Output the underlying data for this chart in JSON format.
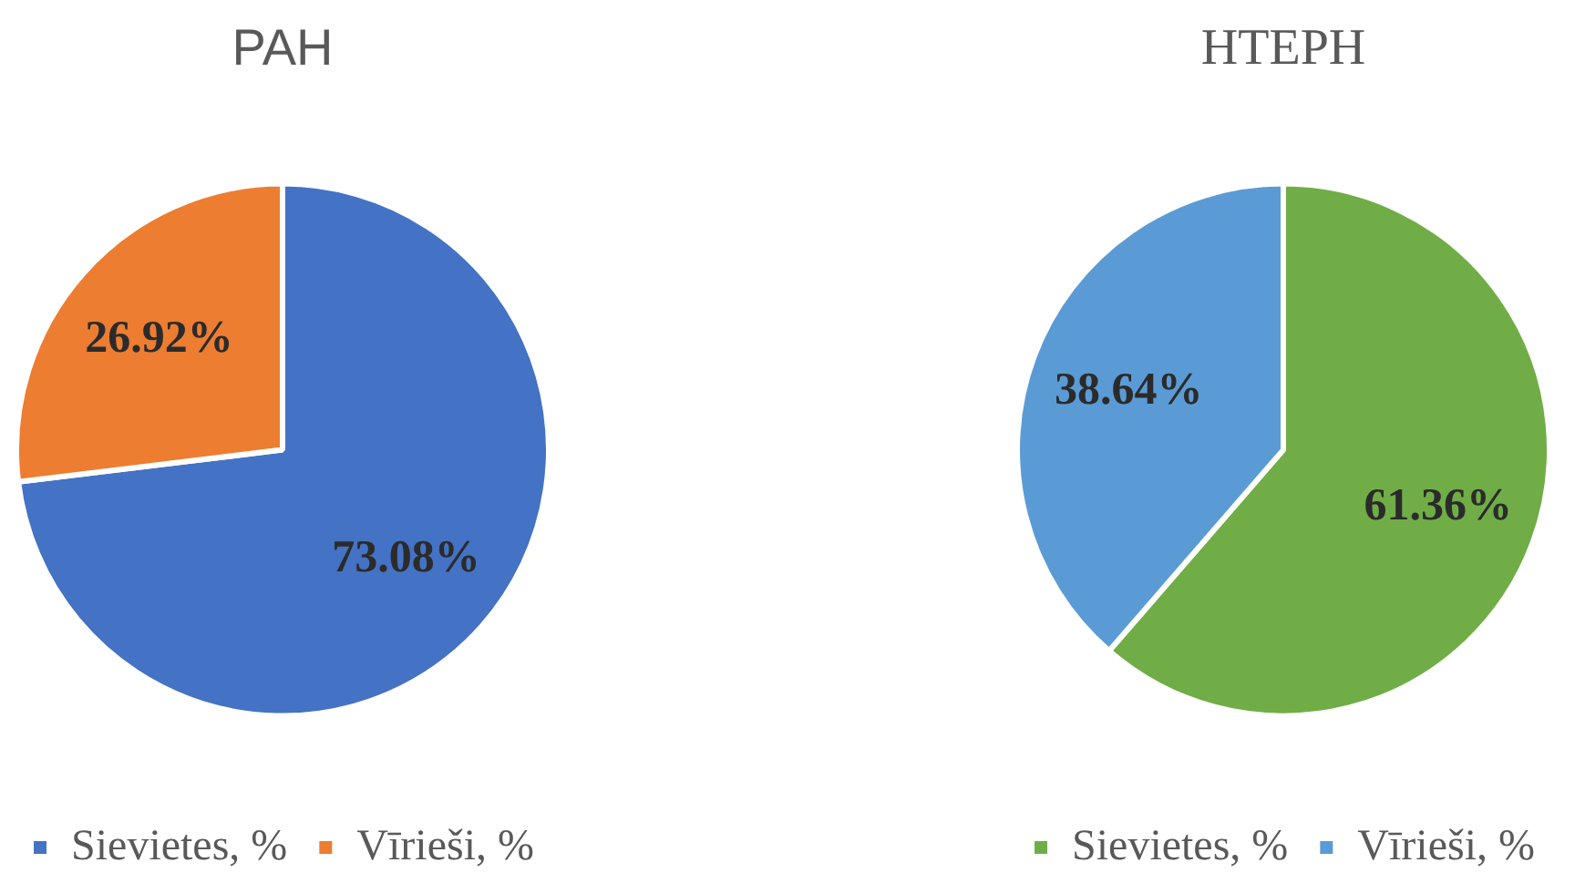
{
  "chart_data": [
    {
      "type": "pie",
      "title": "PAH",
      "categories": [
        "Sievietes, %",
        "Vīrieši, %"
      ],
      "values": [
        73.08,
        26.92
      ],
      "colors": [
        "#4472c4",
        "#ed7d31"
      ],
      "value_labels": [
        "73.08%",
        "26.92%"
      ],
      "legend": "bottom"
    },
    {
      "type": "pie",
      "title": "HTEPH",
      "categories": [
        "Sievietes, %",
        "Vīrieši, %"
      ],
      "values": [
        61.36,
        38.64
      ],
      "colors": [
        "#70ad47",
        "#5b9bd5"
      ],
      "value_labels": [
        "61.36%",
        "38.64%"
      ],
      "legend": "bottom"
    }
  ]
}
